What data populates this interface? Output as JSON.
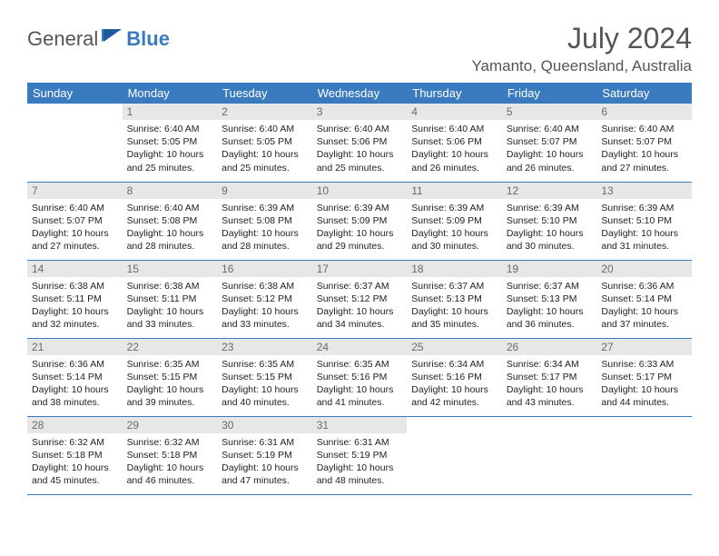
{
  "brand": {
    "part1": "General",
    "part2": "Blue"
  },
  "title": "July 2024",
  "location": "Yamanto, Queensland, Australia",
  "colors": {
    "accent": "#3a7bbf",
    "daybar": "#e7e7e7",
    "text": "#333333",
    "muted": "#6a6a6a",
    "background": "#ffffff"
  },
  "typography": {
    "title_fontsize": 32,
    "location_fontsize": 17,
    "header_fontsize": 13,
    "cell_fontsize": 10.5
  },
  "weekdays": [
    "Sunday",
    "Monday",
    "Tuesday",
    "Wednesday",
    "Thursday",
    "Friday",
    "Saturday"
  ],
  "weeks": [
    [
      null,
      {
        "n": "1",
        "sr": "Sunrise: 6:40 AM",
        "ss": "Sunset: 5:05 PM",
        "d1": "Daylight: 10 hours",
        "d2": "and 25 minutes."
      },
      {
        "n": "2",
        "sr": "Sunrise: 6:40 AM",
        "ss": "Sunset: 5:05 PM",
        "d1": "Daylight: 10 hours",
        "d2": "and 25 minutes."
      },
      {
        "n": "3",
        "sr": "Sunrise: 6:40 AM",
        "ss": "Sunset: 5:06 PM",
        "d1": "Daylight: 10 hours",
        "d2": "and 25 minutes."
      },
      {
        "n": "4",
        "sr": "Sunrise: 6:40 AM",
        "ss": "Sunset: 5:06 PM",
        "d1": "Daylight: 10 hours",
        "d2": "and 26 minutes."
      },
      {
        "n": "5",
        "sr": "Sunrise: 6:40 AM",
        "ss": "Sunset: 5:07 PM",
        "d1": "Daylight: 10 hours",
        "d2": "and 26 minutes."
      },
      {
        "n": "6",
        "sr": "Sunrise: 6:40 AM",
        "ss": "Sunset: 5:07 PM",
        "d1": "Daylight: 10 hours",
        "d2": "and 27 minutes."
      }
    ],
    [
      {
        "n": "7",
        "sr": "Sunrise: 6:40 AM",
        "ss": "Sunset: 5:07 PM",
        "d1": "Daylight: 10 hours",
        "d2": "and 27 minutes."
      },
      {
        "n": "8",
        "sr": "Sunrise: 6:40 AM",
        "ss": "Sunset: 5:08 PM",
        "d1": "Daylight: 10 hours",
        "d2": "and 28 minutes."
      },
      {
        "n": "9",
        "sr": "Sunrise: 6:39 AM",
        "ss": "Sunset: 5:08 PM",
        "d1": "Daylight: 10 hours",
        "d2": "and 28 minutes."
      },
      {
        "n": "10",
        "sr": "Sunrise: 6:39 AM",
        "ss": "Sunset: 5:09 PM",
        "d1": "Daylight: 10 hours",
        "d2": "and 29 minutes."
      },
      {
        "n": "11",
        "sr": "Sunrise: 6:39 AM",
        "ss": "Sunset: 5:09 PM",
        "d1": "Daylight: 10 hours",
        "d2": "and 30 minutes."
      },
      {
        "n": "12",
        "sr": "Sunrise: 6:39 AM",
        "ss": "Sunset: 5:10 PM",
        "d1": "Daylight: 10 hours",
        "d2": "and 30 minutes."
      },
      {
        "n": "13",
        "sr": "Sunrise: 6:39 AM",
        "ss": "Sunset: 5:10 PM",
        "d1": "Daylight: 10 hours",
        "d2": "and 31 minutes."
      }
    ],
    [
      {
        "n": "14",
        "sr": "Sunrise: 6:38 AM",
        "ss": "Sunset: 5:11 PM",
        "d1": "Daylight: 10 hours",
        "d2": "and 32 minutes."
      },
      {
        "n": "15",
        "sr": "Sunrise: 6:38 AM",
        "ss": "Sunset: 5:11 PM",
        "d1": "Daylight: 10 hours",
        "d2": "and 33 minutes."
      },
      {
        "n": "16",
        "sr": "Sunrise: 6:38 AM",
        "ss": "Sunset: 5:12 PM",
        "d1": "Daylight: 10 hours",
        "d2": "and 33 minutes."
      },
      {
        "n": "17",
        "sr": "Sunrise: 6:37 AM",
        "ss": "Sunset: 5:12 PM",
        "d1": "Daylight: 10 hours",
        "d2": "and 34 minutes."
      },
      {
        "n": "18",
        "sr": "Sunrise: 6:37 AM",
        "ss": "Sunset: 5:13 PM",
        "d1": "Daylight: 10 hours",
        "d2": "and 35 minutes."
      },
      {
        "n": "19",
        "sr": "Sunrise: 6:37 AM",
        "ss": "Sunset: 5:13 PM",
        "d1": "Daylight: 10 hours",
        "d2": "and 36 minutes."
      },
      {
        "n": "20",
        "sr": "Sunrise: 6:36 AM",
        "ss": "Sunset: 5:14 PM",
        "d1": "Daylight: 10 hours",
        "d2": "and 37 minutes."
      }
    ],
    [
      {
        "n": "21",
        "sr": "Sunrise: 6:36 AM",
        "ss": "Sunset: 5:14 PM",
        "d1": "Daylight: 10 hours",
        "d2": "and 38 minutes."
      },
      {
        "n": "22",
        "sr": "Sunrise: 6:35 AM",
        "ss": "Sunset: 5:15 PM",
        "d1": "Daylight: 10 hours",
        "d2": "and 39 minutes."
      },
      {
        "n": "23",
        "sr": "Sunrise: 6:35 AM",
        "ss": "Sunset: 5:15 PM",
        "d1": "Daylight: 10 hours",
        "d2": "and 40 minutes."
      },
      {
        "n": "24",
        "sr": "Sunrise: 6:35 AM",
        "ss": "Sunset: 5:16 PM",
        "d1": "Daylight: 10 hours",
        "d2": "and 41 minutes."
      },
      {
        "n": "25",
        "sr": "Sunrise: 6:34 AM",
        "ss": "Sunset: 5:16 PM",
        "d1": "Daylight: 10 hours",
        "d2": "and 42 minutes."
      },
      {
        "n": "26",
        "sr": "Sunrise: 6:34 AM",
        "ss": "Sunset: 5:17 PM",
        "d1": "Daylight: 10 hours",
        "d2": "and 43 minutes."
      },
      {
        "n": "27",
        "sr": "Sunrise: 6:33 AM",
        "ss": "Sunset: 5:17 PM",
        "d1": "Daylight: 10 hours",
        "d2": "and 44 minutes."
      }
    ],
    [
      {
        "n": "28",
        "sr": "Sunrise: 6:32 AM",
        "ss": "Sunset: 5:18 PM",
        "d1": "Daylight: 10 hours",
        "d2": "and 45 minutes."
      },
      {
        "n": "29",
        "sr": "Sunrise: 6:32 AM",
        "ss": "Sunset: 5:18 PM",
        "d1": "Daylight: 10 hours",
        "d2": "and 46 minutes."
      },
      {
        "n": "30",
        "sr": "Sunrise: 6:31 AM",
        "ss": "Sunset: 5:19 PM",
        "d1": "Daylight: 10 hours",
        "d2": "and 47 minutes."
      },
      {
        "n": "31",
        "sr": "Sunrise: 6:31 AM",
        "ss": "Sunset: 5:19 PM",
        "d1": "Daylight: 10 hours",
        "d2": "and 48 minutes."
      },
      null,
      null,
      null
    ]
  ]
}
